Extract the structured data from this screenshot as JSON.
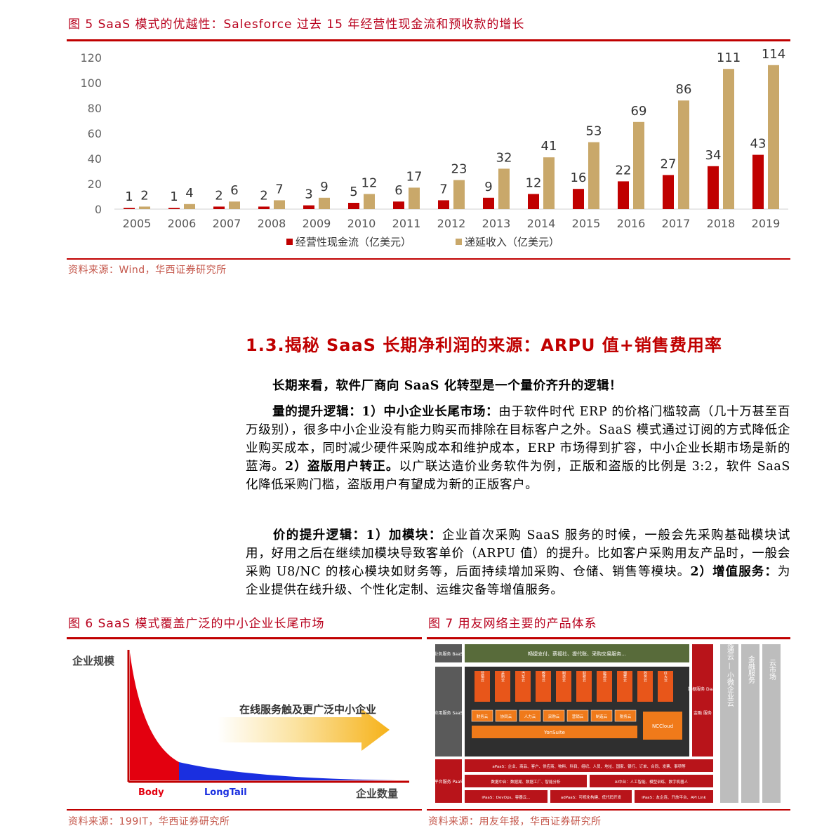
{
  "figure5": {
    "title": "图 5   SaaS 模式的优越性：Salesforce 过去 15 年经营性现金流和预收款的增长",
    "source": "资料来源：Wind，华西证券研究所"
  },
  "chart_data": {
    "type": "bar",
    "categories": [
      "2005",
      "2006",
      "2007",
      "2008",
      "2009",
      "2010",
      "2011",
      "2012",
      "2013",
      "2014",
      "2015",
      "2016",
      "2017",
      "2018",
      "2019"
    ],
    "series": [
      {
        "name": "经营性现金流（亿美元）",
        "color": "#c00000",
        "values": [
          1,
          1,
          2,
          2,
          3,
          5,
          6,
          7,
          9,
          12,
          16,
          22,
          27,
          34,
          43
        ]
      },
      {
        "name": "递延收入（亿美元）",
        "color": "#c9a86a",
        "values": [
          2,
          4,
          6,
          7,
          9,
          12,
          17,
          23,
          32,
          41,
          53,
          69,
          86,
          111,
          114
        ]
      }
    ],
    "yticks": [
      "0",
      "20",
      "40",
      "60",
      "80",
      "100",
      "120"
    ],
    "ylim": [
      0,
      120
    ],
    "legend": "bottom",
    "grid": false
  },
  "section": {
    "heading": "1.3.揭秘 SaaS 长期净利润的来源：ARPU 值+销售费用率",
    "p1": "长期来看，软件厂商向 SaaS 化转型是一个量价齐升的逻辑！",
    "p2_bold1": "量的提升逻辑：1）中小企业长尾市场：",
    "p2_text1": "由于软件时代 ERP 的价格门槛较高（几十万甚至百万级别），很多中小企业没有能力购买而排除在目标客户之外。SaaS 模式通过订阅的方式降低企业购买成本，同时减少硬件采购成本和维护成本，ERP 市场得到扩容，中小企业长期市场是新的蓝海。",
    "p2_bold2": "2）盗版用户转正。",
    "p2_text2": "以广联达造价业务软件为例，正版和盗版的比例是 3:2，软件 SaaS 化降低采购门槛，盗版用户有望成为新的正版客户。",
    "p3_bold1": "价的提升逻辑：1）加模块：",
    "p3_text1": "企业首次采购 SaaS 服务的时候，一般会先采购基础模块试用，好用之后在继续加模块导致客单价（ARPU 值）的提升。比如客户采购用友产品时，一般会采购 U8/NC 的核心模块如财务等，后面持续增加采购、仓储、销售等模块。",
    "p3_bold2": "2）增值服务：",
    "p3_text2": "为企业提供在线升级、个性化定制、运维灾备等增值服务。"
  },
  "figure6": {
    "title": "图 6   SaaS 模式覆盖广泛的中小企业长尾市场",
    "ylabel": "企业规模",
    "xlabel": "企业数量",
    "arrow_text": "在线服务触及更广泛中小企业",
    "body_label": "Body",
    "tail_label": "LongTail",
    "source": "资料来源：199IT，华西证券研究所"
  },
  "figure7": {
    "title": "图 7   用友网络主要的产品体系",
    "row1_label": "业务服务 BaaS",
    "row1_text": "畅捷支付、薪福社、提代账、采购交易服务...",
    "row2_label": "应用服务 SaaS",
    "apps": [
      "营销云",
      "采购云",
      "汽车云",
      "教育云",
      "制造云",
      "财税云",
      "能源云",
      "烟草云",
      "政务云",
      "红大云"
    ],
    "modules": [
      "财务云",
      "协同云",
      "人力云",
      "采购云",
      "营销云",
      "制造云",
      "税务云"
    ],
    "yonsuite": "YonSuite",
    "nccloud": "NCCloud",
    "data_label": "数据服务 DaaS",
    "data_sub": "金融 服务",
    "row3_label": "平台服务 PaaS",
    "paas_line1": "aPaaS：企业、商品、客户、供应商、物料、科目、组织、人员、地址、国家、银行、订单、合同、发票、事项等",
    "paas_line2a": "数据中台：数据湖、数据工厂、智能分析",
    "paas_line2b": "AI中台：人工智能、模型训练、数字机器人",
    "paas_line3a": "iPaaS：DevOps、容器云...",
    "paas_line3b": "adPaaS：可视化构建、低代码开发",
    "paas_line3c": "iPaaS：友企连、开放平台、API Link",
    "col1": "畅捷通云 — 小微企业云",
    "col2": "金融服务",
    "col3": "云市场",
    "source": "资料来源：用友年报，华西证券研究所"
  }
}
